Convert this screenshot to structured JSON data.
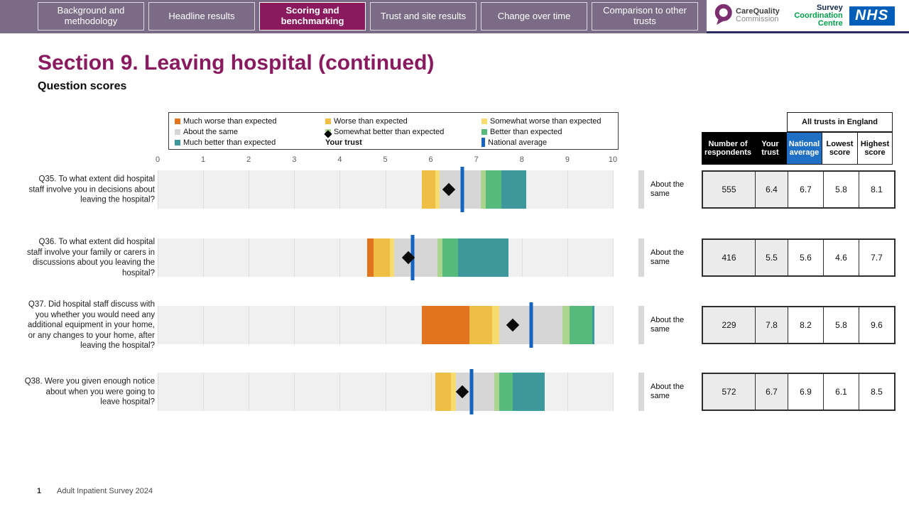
{
  "nav": {
    "tabs": [
      {
        "label": "Background and methodology",
        "active": false
      },
      {
        "label": "Headline results",
        "active": false
      },
      {
        "label": "Scoring and benchmarking",
        "active": true
      },
      {
        "label": "Trust and site results",
        "active": false
      },
      {
        "label": "Change over time",
        "active": false
      },
      {
        "label": "Comparison to other trusts",
        "active": false
      }
    ]
  },
  "logos": {
    "cqc_line1": "CareQuality",
    "cqc_line2": "Commission",
    "scc_line1": "Survey",
    "scc_line2": "Coordination",
    "scc_line3": "Centre",
    "nhs": "NHS"
  },
  "title": "Section 9. Leaving hospital (continued)",
  "subtitle": "Question scores",
  "colors": {
    "nav_bg": "#7b6b86",
    "active_tab": "#8A195E",
    "title": "#8A1A5F",
    "nhs_blue": "#005EB8",
    "national_line": "#1463BE",
    "national_header_bg": "#1F6FC4",
    "bands": {
      "much_worse": "#E2741F",
      "worse": "#EFBE45",
      "somewhat_worse": "#F9DC70",
      "about_same": "#D6D6D6",
      "somewhat_better": "#ABD48F",
      "better": "#56BA7D",
      "much_better": "#3D989B"
    }
  },
  "legend": {
    "items": [
      {
        "label": "Much worse than expected",
        "swatch": "square",
        "band": "much_worse"
      },
      {
        "label": "Worse than expected",
        "swatch": "square",
        "band": "worse"
      },
      {
        "label": "Somewhat worse than expected",
        "swatch": "square",
        "band": "somewhat_worse"
      },
      {
        "label": "About the same",
        "swatch": "square",
        "band": "about_same"
      },
      {
        "label": "Somewhat better than expected",
        "swatch": "square",
        "band": "somewhat_better"
      },
      {
        "label": "Better than expected",
        "swatch": "square",
        "band": "better"
      },
      {
        "label": "Much better than expected",
        "swatch": "square",
        "band": "much_better"
      },
      {
        "label": "Your trust",
        "swatch": "diamond",
        "bold": true
      },
      {
        "label": "National average",
        "swatch": "vbar"
      }
    ]
  },
  "table": {
    "all_trusts_label": "All trusts in England",
    "headers": {
      "respondents": "Number of respondents",
      "trust": "Your trust",
      "national": "National average",
      "lowest": "Lowest score",
      "highest": "Highest score"
    }
  },
  "chart_data": {
    "type": "bar",
    "orientation": "horizontal",
    "xlim": [
      0,
      10
    ],
    "axis_ticks": [
      0,
      1,
      2,
      3,
      4,
      5,
      6,
      7,
      8,
      9,
      10
    ],
    "questions": [
      {
        "label": "Q35. To what extent did hospital staff involve you in decisions about leaving the hospital?",
        "caption": "About the same",
        "respondents": 555,
        "your_trust": 6.4,
        "national_average": 6.7,
        "lowest": 5.8,
        "highest": 8.1,
        "segments": [
          {
            "band": "worse",
            "from": 5.8,
            "to": 6.1
          },
          {
            "band": "somewhat_worse",
            "from": 6.1,
            "to": 6.2
          },
          {
            "band": "about_same",
            "from": 6.2,
            "to": 7.1
          },
          {
            "band": "somewhat_better",
            "from": 7.1,
            "to": 7.2
          },
          {
            "band": "better",
            "from": 7.2,
            "to": 7.55
          },
          {
            "band": "much_better",
            "from": 7.55,
            "to": 8.1
          }
        ]
      },
      {
        "label": "Q36. To what extent did hospital staff involve your family or carers in discussions about you leaving the hospital?",
        "caption": "About the same",
        "respondents": 416,
        "your_trust": 5.5,
        "national_average": 5.6,
        "lowest": 4.6,
        "highest": 7.7,
        "segments": [
          {
            "band": "much_worse",
            "from": 4.6,
            "to": 4.75
          },
          {
            "band": "worse",
            "from": 4.75,
            "to": 5.1
          },
          {
            "band": "somewhat_worse",
            "from": 5.1,
            "to": 5.2
          },
          {
            "band": "about_same",
            "from": 5.2,
            "to": 6.15
          },
          {
            "band": "somewhat_better",
            "from": 6.15,
            "to": 6.25
          },
          {
            "band": "better",
            "from": 6.25,
            "to": 6.6
          },
          {
            "band": "much_better",
            "from": 6.6,
            "to": 7.7
          }
        ]
      },
      {
        "label": "Q37. Did hospital staff discuss with you whether you would need any additional equipment in your home, or any changes to your home, after leaving the hospital?",
        "caption": "About the same",
        "respondents": 229,
        "your_trust": 7.8,
        "national_average": 8.2,
        "lowest": 5.8,
        "highest": 9.6,
        "segments": [
          {
            "band": "much_worse",
            "from": 5.8,
            "to": 6.85
          },
          {
            "band": "worse",
            "from": 6.85,
            "to": 7.35
          },
          {
            "band": "somewhat_worse",
            "from": 7.35,
            "to": 7.5
          },
          {
            "band": "about_same",
            "from": 7.5,
            "to": 8.9
          },
          {
            "band": "somewhat_better",
            "from": 8.9,
            "to": 9.05
          },
          {
            "band": "better",
            "from": 9.05,
            "to": 9.55
          },
          {
            "band": "much_better",
            "from": 9.55,
            "to": 9.6
          }
        ]
      },
      {
        "label": "Q38. Were you given enough notice about when you were going to leave hospital?",
        "caption": "About the same",
        "respondents": 572,
        "your_trust": 6.7,
        "national_average": 6.9,
        "lowest": 6.1,
        "highest": 8.5,
        "segments": [
          {
            "band": "worse",
            "from": 6.1,
            "to": 6.45
          },
          {
            "band": "somewhat_worse",
            "from": 6.45,
            "to": 6.55
          },
          {
            "band": "about_same",
            "from": 6.55,
            "to": 7.4
          },
          {
            "band": "somewhat_better",
            "from": 7.4,
            "to": 7.5
          },
          {
            "band": "better",
            "from": 7.5,
            "to": 7.8
          },
          {
            "band": "much_better",
            "from": 7.8,
            "to": 8.5
          }
        ]
      }
    ]
  },
  "footer": {
    "page": "1",
    "text": "Adult Inpatient Survey 2024"
  }
}
